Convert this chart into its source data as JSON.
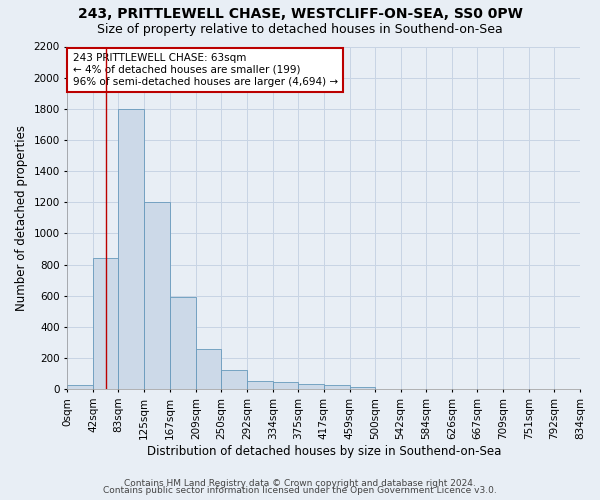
{
  "title1": "243, PRITTLEWELL CHASE, WESTCLIFF-ON-SEA, SS0 0PW",
  "title2": "Size of property relative to detached houses in Southend-on-Sea",
  "xlabel": "Distribution of detached houses by size in Southend-on-Sea",
  "ylabel": "Number of detached properties",
  "footer1": "Contains HM Land Registry data © Crown copyright and database right 2024.",
  "footer2": "Contains public sector information licensed under the Open Government Licence v3.0.",
  "bin_edges": [
    0,
    42,
    83,
    125,
    167,
    209,
    250,
    292,
    334,
    375,
    417,
    459,
    500,
    542,
    584,
    626,
    667,
    709,
    751,
    792,
    834
  ],
  "bar_heights": [
    28,
    845,
    1800,
    1200,
    590,
    260,
    125,
    50,
    48,
    32,
    25,
    15,
    0,
    0,
    0,
    0,
    0,
    0,
    0,
    0
  ],
  "bar_color": "#ccd9e8",
  "bar_edge_color": "#6699bb",
  "property_line_x": 63,
  "property_line_color": "#bb0000",
  "annotation_text": "243 PRITTLEWELL CHASE: 63sqm\n← 4% of detached houses are smaller (199)\n96% of semi-detached houses are larger (4,694) →",
  "annotation_box_color": "#ffffff",
  "annotation_box_edge_color": "#bb0000",
  "ylim": [
    0,
    2200
  ],
  "yticks": [
    0,
    200,
    400,
    600,
    800,
    1000,
    1200,
    1400,
    1600,
    1800,
    2000,
    2200
  ],
  "grid_color": "#c8d4e4",
  "background_color": "#e8eef5",
  "title1_fontsize": 10,
  "title2_fontsize": 9,
  "xlabel_fontsize": 8.5,
  "ylabel_fontsize": 8.5,
  "tick_fontsize": 7.5,
  "annotation_fontsize": 7.5,
  "footer_fontsize": 6.5
}
